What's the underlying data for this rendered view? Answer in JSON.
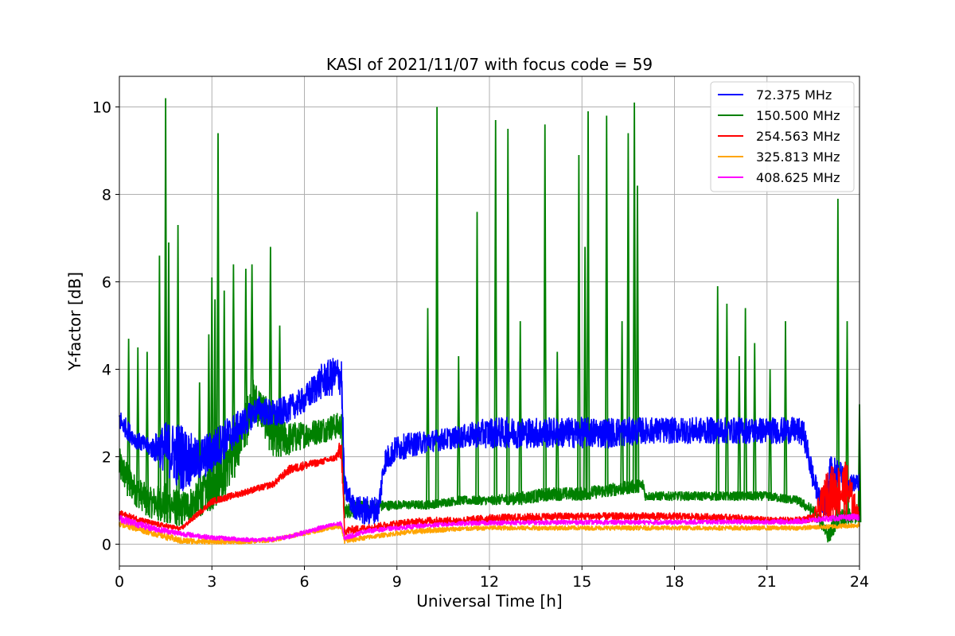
{
  "chart_data": {
    "type": "line",
    "title": "KASI of 2021/11/07 with focus code = 59",
    "xlabel": "Universal Time [h]",
    "ylabel": "Y-factor [dB]",
    "xlim": [
      0,
      24
    ],
    "ylim": [
      -0.5,
      10.7
    ],
    "xticks": [
      0,
      3,
      6,
      9,
      12,
      15,
      18,
      21,
      24
    ],
    "yticks": [
      0,
      2,
      4,
      6,
      8,
      10
    ],
    "grid": true,
    "legend_position": "top-right",
    "series": [
      {
        "name": " 72.375 MHz",
        "color": "#0000ff",
        "x": [
          0,
          0.5,
          1,
          1.5,
          2,
          2.5,
          3,
          3.5,
          4,
          4.5,
          5,
          5.5,
          6,
          6.5,
          7,
          7.2,
          7.3,
          7.6,
          8,
          8.4,
          8.6,
          9,
          10,
          11,
          12,
          13,
          14,
          15,
          16,
          17,
          18,
          19,
          20,
          21,
          22,
          22.2,
          22.5,
          22.8,
          23,
          23.3,
          23.6,
          24
        ],
        "lower": [
          2.6,
          2.2,
          2.0,
          1.6,
          1.2,
          1.4,
          1.6,
          2.0,
          2.4,
          2.8,
          2.6,
          2.8,
          3.0,
          3.3,
          3.4,
          3.4,
          1.0,
          0.6,
          0.4,
          0.5,
          1.6,
          1.9,
          2.1,
          2.2,
          2.2,
          2.2,
          2.2,
          2.2,
          2.2,
          2.3,
          2.3,
          2.3,
          2.3,
          2.3,
          2.3,
          2.2,
          1.2,
          0.6,
          0.6,
          1.4,
          1.2,
          1.2
        ],
        "upper": [
          3.1,
          2.6,
          2.4,
          2.8,
          2.8,
          2.4,
          2.6,
          2.9,
          3.1,
          3.4,
          3.3,
          3.4,
          3.6,
          4.1,
          4.3,
          4.3,
          1.6,
          1.1,
          1.1,
          1.1,
          2.2,
          2.5,
          2.6,
          2.7,
          2.9,
          2.9,
          2.9,
          2.9,
          2.9,
          2.9,
          2.9,
          2.9,
          2.9,
          2.9,
          2.9,
          2.8,
          1.8,
          1.0,
          2.0,
          2.0,
          1.6,
          1.6
        ]
      },
      {
        "name": "150.500 MHz",
        "color": "#008000",
        "x": [
          0,
          0.5,
          1,
          1.5,
          2,
          2.5,
          3,
          3.5,
          4,
          4.3,
          4.6,
          5,
          5.5,
          6,
          6.5,
          7,
          7.2,
          7.3,
          7.6,
          8,
          9,
          10,
          11,
          12,
          13,
          14,
          15,
          16,
          17,
          17.05,
          18,
          19,
          20,
          21,
          22,
          22.5,
          22.8,
          23,
          23.3,
          23.6,
          24
        ],
        "lower": [
          1.4,
          0.9,
          0.6,
          0.5,
          0.4,
          0.6,
          0.8,
          1.2,
          2.0,
          2.8,
          2.6,
          2.0,
          2.0,
          2.2,
          2.3,
          2.4,
          2.4,
          0.6,
          0.6,
          0.7,
          0.8,
          0.8,
          0.9,
          0.9,
          0.9,
          1.0,
          1.0,
          1.1,
          1.2,
          1.0,
          1.0,
          1.0,
          1.0,
          1.0,
          0.9,
          0.6,
          0.3,
          0.0,
          0.4,
          0.4,
          0.5
        ],
        "upper": [
          2.2,
          1.6,
          1.3,
          1.4,
          1.2,
          1.4,
          1.8,
          2.6,
          3.0,
          3.8,
          3.6,
          3.0,
          2.8,
          2.8,
          2.9,
          3.0,
          3.0,
          0.9,
          1.0,
          1.0,
          1.0,
          1.0,
          1.1,
          1.1,
          1.2,
          1.3,
          1.3,
          1.4,
          1.5,
          1.2,
          1.2,
          1.2,
          1.2,
          1.2,
          1.1,
          0.9,
          0.6,
          0.4,
          0.8,
          0.8,
          0.9
        ],
        "spikes": [
          [
            0.3,
            4.7
          ],
          [
            0.6,
            4.5
          ],
          [
            0.9,
            4.4
          ],
          [
            1.3,
            6.6
          ],
          [
            1.5,
            10.2
          ],
          [
            1.6,
            6.9
          ],
          [
            1.9,
            7.3
          ],
          [
            2.6,
            3.7
          ],
          [
            2.9,
            4.8
          ],
          [
            3.0,
            6.1
          ],
          [
            3.1,
            5.6
          ],
          [
            3.2,
            9.4
          ],
          [
            3.4,
            5.8
          ],
          [
            3.7,
            6.4
          ],
          [
            4.1,
            6.3
          ],
          [
            4.3,
            6.4
          ],
          [
            4.9,
            6.8
          ],
          [
            5.2,
            5.0
          ],
          [
            10.0,
            5.4
          ],
          [
            10.3,
            10.0
          ],
          [
            11.0,
            4.3
          ],
          [
            11.6,
            7.6
          ],
          [
            12.2,
            9.7
          ],
          [
            12.6,
            9.5
          ],
          [
            13.0,
            5.1
          ],
          [
            13.8,
            9.6
          ],
          [
            14.2,
            4.4
          ],
          [
            14.9,
            8.9
          ],
          [
            15.1,
            6.8
          ],
          [
            15.2,
            9.9
          ],
          [
            15.8,
            9.8
          ],
          [
            16.3,
            5.1
          ],
          [
            16.5,
            9.4
          ],
          [
            16.7,
            10.1
          ],
          [
            16.8,
            8.2
          ],
          [
            19.4,
            5.9
          ],
          [
            19.7,
            5.5
          ],
          [
            20.1,
            4.3
          ],
          [
            20.3,
            5.4
          ],
          [
            20.6,
            4.6
          ],
          [
            21.1,
            4.0
          ],
          [
            21.6,
            5.1
          ],
          [
            23.3,
            7.9
          ],
          [
            23.6,
            5.1
          ],
          [
            24.0,
            3.2
          ]
        ]
      },
      {
        "name": "254.563 MHz",
        "color": "#ff0000",
        "x": [
          0,
          1,
          2,
          3,
          4,
          5,
          5.5,
          6,
          6.5,
          7,
          7.2,
          7.3,
          8,
          9,
          10,
          11,
          12,
          13,
          14,
          15,
          16,
          17,
          18,
          19,
          20,
          21,
          22,
          22.5,
          23,
          23.2,
          23.6,
          24
        ],
        "lower": [
          0.62,
          0.42,
          0.3,
          0.9,
          1.1,
          1.3,
          1.6,
          1.7,
          1.8,
          1.9,
          1.9,
          0.2,
          0.3,
          0.4,
          0.45,
          0.45,
          0.5,
          0.5,
          0.55,
          0.55,
          0.55,
          0.55,
          0.55,
          0.55,
          0.52,
          0.48,
          0.48,
          0.5,
          0.6,
          0.6,
          0.6,
          0.6
        ],
        "upper": [
          0.78,
          0.55,
          0.4,
          1.05,
          1.25,
          1.45,
          1.8,
          1.9,
          1.95,
          2.05,
          2.45,
          0.4,
          0.45,
          0.55,
          0.62,
          0.62,
          0.68,
          0.7,
          0.72,
          0.72,
          0.72,
          0.72,
          0.72,
          0.7,
          0.68,
          0.62,
          0.62,
          0.7,
          1.8,
          1.8,
          1.9,
          0.7
        ]
      },
      {
        "name": "325.813 MHz",
        "color": "#ffa500",
        "x": [
          0,
          1,
          2,
          3,
          4,
          5,
          6,
          7,
          7.2,
          7.3,
          8,
          9,
          10,
          11,
          12,
          13,
          14,
          15,
          16,
          17,
          18,
          19,
          20,
          21,
          22,
          23,
          24
        ],
        "lower": [
          0.4,
          0.2,
          0.0,
          0.0,
          0.0,
          0.05,
          0.2,
          0.35,
          0.35,
          0.0,
          0.1,
          0.2,
          0.25,
          0.3,
          0.32,
          0.32,
          0.32,
          0.32,
          0.32,
          0.32,
          0.32,
          0.32,
          0.32,
          0.32,
          0.32,
          0.35,
          0.38
        ],
        "upper": [
          0.55,
          0.35,
          0.15,
          0.12,
          0.1,
          0.15,
          0.3,
          0.45,
          0.45,
          0.15,
          0.2,
          0.3,
          0.38,
          0.4,
          0.42,
          0.42,
          0.42,
          0.42,
          0.42,
          0.42,
          0.42,
          0.42,
          0.42,
          0.42,
          0.42,
          0.45,
          0.5
        ]
      },
      {
        "name": "408.625 MHz",
        "color": "#ff00ff",
        "x": [
          0,
          1,
          2,
          3,
          4,
          4.5,
          5,
          5.5,
          6,
          6.5,
          7,
          7.2,
          7.3,
          8,
          9,
          10,
          11,
          12,
          13,
          14,
          15,
          16,
          17,
          18,
          19,
          20,
          21,
          22,
          23,
          24
        ],
        "lower": [
          0.5,
          0.3,
          0.18,
          0.1,
          0.06,
          0.05,
          0.06,
          0.12,
          0.22,
          0.32,
          0.4,
          0.42,
          0.08,
          0.25,
          0.32,
          0.38,
          0.42,
          0.44,
          0.44,
          0.45,
          0.45,
          0.45,
          0.45,
          0.45,
          0.46,
          0.46,
          0.46,
          0.46,
          0.52,
          0.55
        ],
        "upper": [
          0.68,
          0.45,
          0.3,
          0.2,
          0.16,
          0.14,
          0.16,
          0.22,
          0.32,
          0.42,
          0.5,
          0.52,
          0.2,
          0.35,
          0.42,
          0.48,
          0.52,
          0.54,
          0.54,
          0.55,
          0.55,
          0.55,
          0.55,
          0.55,
          0.56,
          0.56,
          0.56,
          0.58,
          0.65,
          0.7
        ]
      }
    ]
  }
}
